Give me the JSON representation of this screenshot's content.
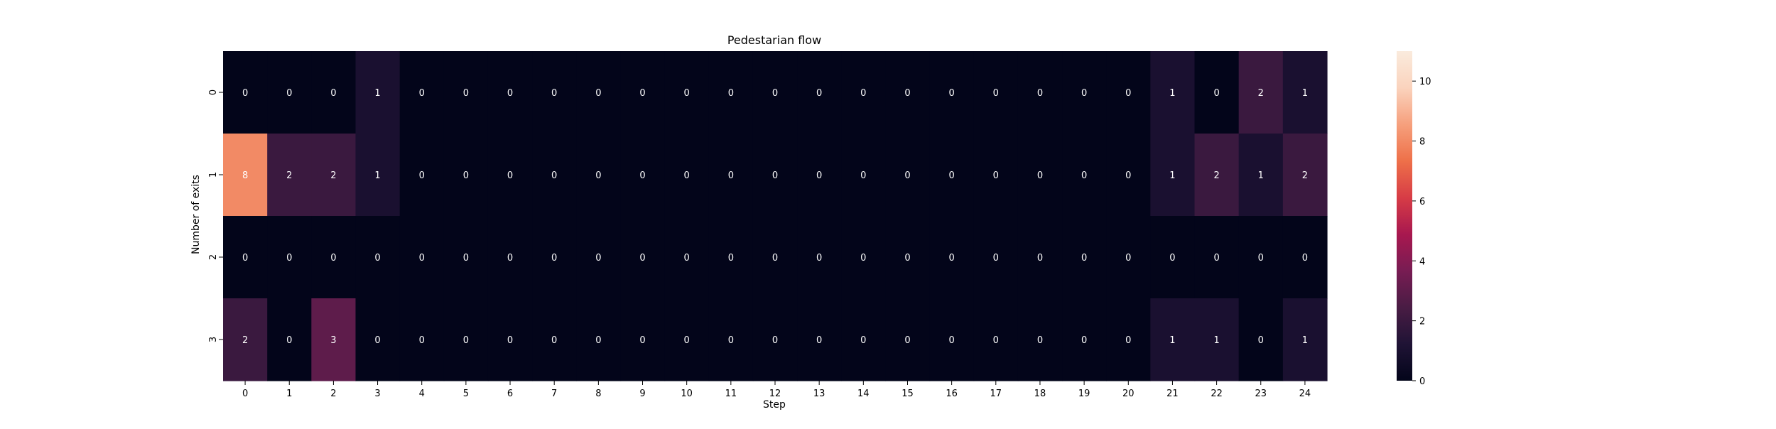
{
  "chart_data": {
    "type": "heatmap",
    "title": "Pedestarian flow",
    "xlabel": "Step",
    "ylabel": "Number of exits",
    "x_categories": [
      "0",
      "1",
      "2",
      "3",
      "4",
      "5",
      "6",
      "7",
      "8",
      "9",
      "10",
      "11",
      "12",
      "13",
      "14",
      "15",
      "16",
      "17",
      "18",
      "19",
      "20",
      "21",
      "22",
      "23",
      "24"
    ],
    "y_categories": [
      "0",
      "1",
      "2",
      "3"
    ],
    "values": [
      [
        0,
        0,
        0,
        1,
        0,
        0,
        0,
        0,
        0,
        0,
        0,
        0,
        0,
        0,
        0,
        0,
        0,
        0,
        0,
        0,
        0,
        1,
        0,
        2,
        1
      ],
      [
        8,
        2,
        2,
        1,
        0,
        0,
        0,
        0,
        0,
        0,
        0,
        0,
        0,
        0,
        0,
        0,
        0,
        0,
        0,
        0,
        0,
        1,
        2,
        1,
        2
      ],
      [
        0,
        0,
        0,
        0,
        0,
        0,
        0,
        0,
        0,
        0,
        0,
        0,
        0,
        0,
        0,
        0,
        0,
        0,
        0,
        0,
        0,
        0,
        0,
        0,
        0
      ],
      [
        2,
        0,
        3,
        0,
        0,
        0,
        0,
        0,
        0,
        0,
        0,
        0,
        0,
        0,
        0,
        0,
        0,
        0,
        0,
        0,
        0,
        1,
        1,
        0,
        1
      ]
    ],
    "colorbar": {
      "min": 0,
      "max": 11,
      "ticks": [
        0,
        2,
        4,
        6,
        8,
        10
      ],
      "colormap": "rocket",
      "stops": [
        "#03051a",
        "#1f1335",
        "#491c44",
        "#781c53",
        "#a8184f",
        "#d73c46",
        "#ee7049",
        "#f6a07d",
        "#fad3bd",
        "#faebdd"
      ]
    },
    "annotation_color": "#ffffff",
    "legend": "none",
    "grid": false
  }
}
